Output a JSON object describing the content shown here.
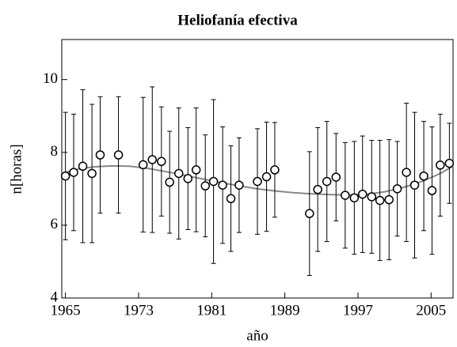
{
  "chart_data": {
    "type": "scatter",
    "title": "Heliofanía efectiva",
    "x_label": "año",
    "y_label": "n[horas]",
    "xlim": [
      1964.6,
      2007.4
    ],
    "ylim": [
      4,
      11.1
    ],
    "xticks": [
      1965,
      1973,
      1981,
      1989,
      1997,
      2005
    ],
    "yticks": [
      4,
      6,
      8,
      10
    ],
    "points": {
      "color": "#000000",
      "x": [
        1965,
        1965.9,
        1966.9,
        1967.9,
        1968.8,
        1970.8,
        1973.5,
        1974.5,
        1975.5,
        1976.4,
        1977.4,
        1978.4,
        1979.3,
        1980.3,
        1981.2,
        1982.2,
        1983.1,
        1984.0,
        1986.0,
        1987.0,
        1987.9,
        1991.7,
        1992.6,
        1993.6,
        1994.6,
        1995.6,
        1996.6,
        1997.5,
        1998.5,
        1999.4,
        2000.4,
        2001.3,
        2002.3,
        2003.2,
        2004.2,
        2005.1,
        2006.0,
        2007.0
      ],
      "values": [
        7.35,
        7.45,
        7.62,
        7.42,
        7.93,
        7.93,
        7.66,
        7.8,
        7.75,
        7.18,
        7.42,
        7.28,
        7.52,
        7.08,
        7.2,
        7.1,
        6.73,
        7.1,
        7.2,
        7.33,
        7.52,
        6.32,
        6.98,
        7.2,
        7.32,
        6.82,
        6.75,
        6.85,
        6.78,
        6.68,
        6.7,
        7.0,
        7.45,
        7.1,
        7.35,
        6.95,
        7.65,
        7.7
      ],
      "errors": [
        1.75,
        1.6,
        2.1,
        1.9,
        1.6,
        1.6,
        1.85,
        2.0,
        1.5,
        1.4,
        1.8,
        1.4,
        1.7,
        1.4,
        2.25,
        1.6,
        1.45,
        1.3,
        1.45,
        1.5,
        1.3,
        1.7,
        1.7,
        1.65,
        1.2,
        1.45,
        1.55,
        1.6,
        1.55,
        1.65,
        1.65,
        1.3,
        1.9,
        2.0,
        1.5,
        1.75,
        1.4,
        1.1
      ]
    },
    "fit": {
      "color": "#888888",
      "x": [
        1964.6,
        1966,
        1968,
        1970,
        1972,
        1974,
        1976,
        1978,
        1980,
        1982,
        1984,
        1986,
        1988,
        1990,
        1992,
        1994,
        1996,
        1998,
        2000,
        2002,
        2004,
        2006,
        2007.4
      ],
      "values": [
        7.42,
        7.52,
        7.6,
        7.63,
        7.62,
        7.56,
        7.47,
        7.37,
        7.27,
        7.17,
        7.08,
        7.0,
        6.94,
        6.89,
        6.86,
        6.84,
        6.83,
        6.85,
        6.92,
        7.04,
        7.2,
        7.42,
        7.62
      ]
    }
  }
}
